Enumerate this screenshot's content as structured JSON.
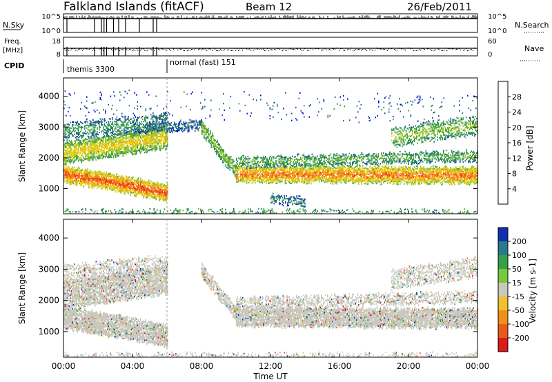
{
  "header": {
    "station": "Falkland Islands (fitACF)",
    "beam": "Beam 12",
    "date": "26/Feb/2011"
  },
  "top_panels": {
    "nsky_label": "N.Sky",
    "nsky_ticks": [
      "10^5",
      "10^0"
    ],
    "nsearch_label": "N.Search",
    "nsearch_ticks": [
      "10^5",
      "10^0"
    ],
    "freq_label_1": "Freq.",
    "freq_label_2": "[MHz]",
    "freq_ticks": [
      "18",
      "8"
    ],
    "nave_label": "Nave",
    "nave_ticks": [
      "60",
      "0"
    ],
    "cpid_label": "CPID",
    "cpid_segments": [
      {
        "label": "themis 3300",
        "start_hour": 0
      },
      {
        "label": "normal (fast) 151",
        "start_hour": 6
      }
    ]
  },
  "time_axis": {
    "label": "Time UT",
    "ticks": [
      "00:00",
      "04:00",
      "08:00",
      "12:00",
      "16:00",
      "20:00",
      "00:00"
    ],
    "range_hours": [
      0,
      24
    ]
  },
  "chart_data": [
    {
      "type": "heatmap",
      "title": "",
      "ylabel": "Slant Range [km]",
      "yticks": [
        "1000",
        "2000",
        "3000",
        "4000"
      ],
      "ylim": [
        180,
        4600
      ],
      "colorbar_label": "Power [dB]",
      "colorbar_ticks": [
        "4",
        "8",
        "12",
        "16",
        "20",
        "24",
        "28"
      ],
      "colorbar_range": [
        0,
        31
      ],
      "colors": [
        "#0000ee",
        "#1f4fa6",
        "#2d8a58",
        "#4aa84a",
        "#a6c82e",
        "#f2d51c",
        "#f2a91e",
        "#f2741c",
        "#e83a18",
        "#dc1010"
      ],
      "bands": [
        {
          "t0": 0.0,
          "t1": 6.0,
          "r0": 1500,
          "r1": 900,
          "thick": 500,
          "db": 26,
          "fill": 0.9
        },
        {
          "t0": 0.0,
          "t1": 6.0,
          "r0": 2200,
          "r1": 2700,
          "thick": 700,
          "db": 18,
          "fill": 0.8
        },
        {
          "t0": 0.0,
          "t1": 6.0,
          "r0": 2900,
          "r1": 3200,
          "thick": 500,
          "db": 10,
          "fill": 0.45
        },
        {
          "t0": 4.0,
          "t1": 8.0,
          "r0": 3000,
          "r1": 3100,
          "thick": 300,
          "db": 8,
          "fill": 0.6
        },
        {
          "t0": 8.0,
          "t1": 10.0,
          "r0": 3000,
          "r1": 1600,
          "thick": 450,
          "db": 14,
          "fill": 0.75
        },
        {
          "t0": 10.0,
          "t1": 24.0,
          "r0": 1500,
          "r1": 1450,
          "thick": 500,
          "db": 24,
          "fill": 0.85
        },
        {
          "t0": 10.0,
          "t1": 24.0,
          "r0": 1900,
          "r1": 2100,
          "thick": 350,
          "db": 12,
          "fill": 0.55
        },
        {
          "t0": 19.0,
          "t1": 24.0,
          "r0": 2700,
          "r1": 3100,
          "thick": 600,
          "db": 14,
          "fill": 0.5
        },
        {
          "t0": 12.0,
          "t1": 14.0,
          "r0": 700,
          "r1": 600,
          "thick": 300,
          "db": 8,
          "fill": 0.5
        },
        {
          "t0": 0.0,
          "t1": 24.0,
          "r0": 250,
          "r1": 250,
          "thick": 150,
          "db": 12,
          "fill": 0.3
        },
        {
          "t0": 0.0,
          "t1": 24.0,
          "r0": 3800,
          "r1": 3600,
          "thick": 900,
          "db": 6,
          "fill": 0.03
        }
      ]
    },
    {
      "type": "heatmap",
      "title": "",
      "ylabel": "Slant Range [km]",
      "yticks": [
        "1000",
        "2000",
        "3000",
        "4000"
      ],
      "ylim": [
        180,
        4600
      ],
      "colorbar_label": "Velocity [m s-1]",
      "colorbar_ticks": [
        "200",
        "100",
        "50",
        "15",
        "-15",
        "-50",
        "-100",
        "-200"
      ],
      "colors": [
        "#1030b0",
        "#2a7a8c",
        "#34a04a",
        "#78c83c",
        "#c8c8c0",
        "#f0c030",
        "#f0901a",
        "#e85a1c",
        "#dc1a1a"
      ],
      "ground_color": "#c8c8c0",
      "bands": [
        {
          "t0": 0.0,
          "t1": 6.0,
          "r0": 1500,
          "r1": 900,
          "thick": 700,
          "fill": 0.9
        },
        {
          "t0": 0.0,
          "t1": 6.0,
          "r0": 2200,
          "r1": 2700,
          "thick": 900,
          "fill": 0.8
        },
        {
          "t0": 0.0,
          "t1": 6.0,
          "r0": 2900,
          "r1": 3200,
          "thick": 500,
          "fill": 0.5
        },
        {
          "t0": 8.0,
          "t1": 10.0,
          "r0": 3000,
          "r1": 1600,
          "thick": 450,
          "fill": 0.75
        },
        {
          "t0": 10.0,
          "t1": 24.0,
          "r0": 1500,
          "r1": 1450,
          "thick": 600,
          "fill": 0.9
        },
        {
          "t0": 10.0,
          "t1": 24.0,
          "r0": 1950,
          "r1": 2150,
          "thick": 350,
          "fill": 0.55
        },
        {
          "t0": 19.0,
          "t1": 24.0,
          "r0": 2700,
          "r1": 3100,
          "thick": 600,
          "fill": 0.5
        },
        {
          "t0": 0.0,
          "t1": 24.0,
          "r0": 250,
          "r1": 250,
          "thick": 150,
          "fill": 0.3
        }
      ]
    }
  ]
}
